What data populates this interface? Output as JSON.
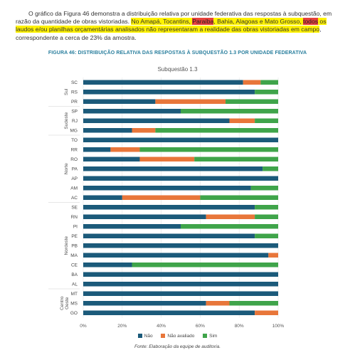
{
  "paragraph": {
    "part1": "O gráfico da Figura 46 demonstra a distribuição relativa por unidade federativa das respostas à subquestão, em razão da quantidade de obras vistoriadas. ",
    "hl1": "No Amapá, Tocantins, ",
    "hl_red1": "Paraíba",
    "hl2": ", Bahia, Alagoas e Mato Grosso, ",
    "hl_red2": "todos",
    "hl3": " os laudos e/ou planilhas orçamentárias analisados não representaram a realidade das obras vistoriadas em campo",
    "part2": ", correspondente a cerca de 23% da amostra."
  },
  "figure_title": "FIGURA 46: DISTRIBUIÇÃO RELATIVA DAS RESPOSTAS À SUBQUESTÃO 1.3 POR UNIDADE FEDERATIVA",
  "source": "Fonte: Elaboração da equipe de auditoria.",
  "colors": {
    "nao": "#1b5a7a",
    "nao_avaliado": "#e8763a",
    "sim": "#3fa44a",
    "highlight_yellow": "#fff200",
    "highlight_red": "#e8413c",
    "figure_title": "#2a7f9e"
  },
  "chart_data": {
    "type": "bar",
    "orientation": "horizontal",
    "stacked": true,
    "title": "Subquestão 1.3",
    "xlim": [
      0,
      100
    ],
    "x_ticks": [
      "0%",
      "20%",
      "40%",
      "60%",
      "80%",
      "100%"
    ],
    "groups": [
      {
        "name": "Sul",
        "categories": [
          "SC",
          "RS",
          "PR"
        ]
      },
      {
        "name": "Sudeste",
        "categories": [
          "SP",
          "RJ",
          "MG"
        ]
      },
      {
        "name": "Norte",
        "categories": [
          "TO",
          "RR",
          "RO",
          "PA",
          "AP",
          "AM",
          "AC"
        ]
      },
      {
        "name": "Nordeste",
        "categories": [
          "SE",
          "RN",
          "PI",
          "PE",
          "PB",
          "MA",
          "CE",
          "BA",
          "AL"
        ]
      },
      {
        "name": "Centro Oeste",
        "categories": [
          "MT",
          "MS",
          "GO"
        ]
      }
    ],
    "categories": [
      "SC",
      "RS",
      "PR",
      "SP",
      "RJ",
      "MG",
      "TO",
      "RR",
      "RO",
      "PA",
      "AP",
      "AM",
      "AC",
      "SE",
      "RN",
      "PI",
      "PE",
      "PB",
      "MA",
      "CE",
      "BA",
      "AL",
      "MT",
      "MS",
      "GO"
    ],
    "series": [
      {
        "name": "Não",
        "values": [
          82,
          88,
          37,
          50,
          75,
          25,
          100,
          14,
          29,
          92,
          100,
          86,
          20,
          88,
          63,
          50,
          88,
          100,
          95,
          25,
          100,
          100,
          100,
          63,
          88
        ]
      },
      {
        "name": "Não avaliado",
        "values": [
          9,
          0,
          36,
          0,
          13,
          12,
          0,
          15,
          28,
          0,
          0,
          0,
          40,
          0,
          25,
          0,
          0,
          0,
          5,
          0,
          0,
          0,
          0,
          12,
          12
        ]
      },
      {
        "name": "Sim",
        "values": [
          9,
          12,
          27,
          50,
          12,
          63,
          0,
          71,
          43,
          8,
          0,
          14,
          40,
          12,
          12,
          50,
          12,
          0,
          0,
          75,
          0,
          0,
          0,
          25,
          0
        ]
      }
    ]
  }
}
